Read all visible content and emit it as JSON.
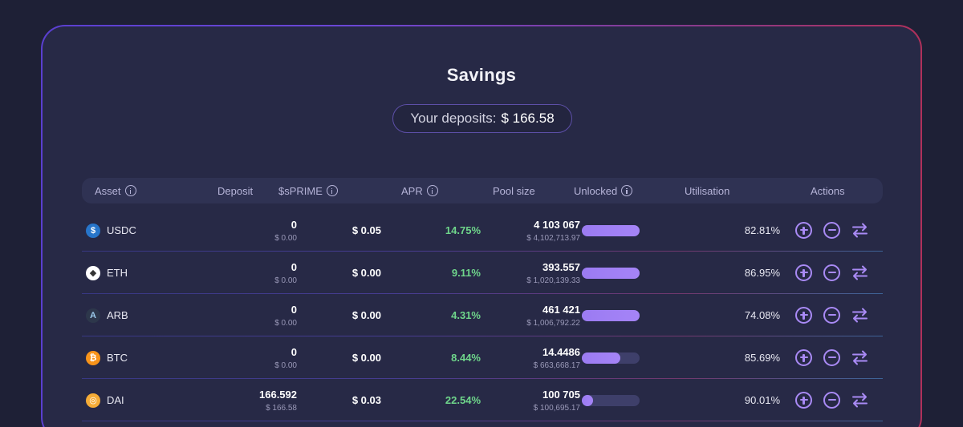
{
  "title": "Savings",
  "deposits": {
    "label": "Your deposits:",
    "value": "$ 166.58"
  },
  "columns": {
    "asset": "Asset",
    "deposit": "Deposit",
    "sprime": "$sPRIME",
    "apr": "APR",
    "pool_size": "Pool size",
    "unlocked": "Unlocked",
    "utilisation": "Utilisation",
    "actions": "Actions"
  },
  "colors": {
    "accent": "#a98af5",
    "apr_green": "#6fd68b",
    "card_bg": "#272946",
    "page_bg": "#1e2036"
  },
  "rows": [
    {
      "asset": "USDC",
      "icon": "usdc-icon",
      "icon_color": "#2775ca",
      "deposit": "0",
      "deposit_usd": "$ 0.00",
      "sprime": "$ 0.05",
      "apr": "14.75%",
      "pool_size": "4 103 067",
      "pool_size_usd": "$ 4,102,713.97",
      "unlocked_fraction": 1.0,
      "utilisation": "82.81%"
    },
    {
      "asset": "ETH",
      "icon": "eth-icon",
      "icon_color": "#ffffff",
      "deposit": "0",
      "deposit_usd": "$ 0.00",
      "sprime": "$ 0.00",
      "apr": "9.11%",
      "pool_size": "393.557",
      "pool_size_usd": "$ 1,020,139.33",
      "unlocked_fraction": 1.0,
      "utilisation": "86.95%"
    },
    {
      "asset": "ARB",
      "icon": "arb-icon",
      "icon_color": "#2d374b",
      "deposit": "0",
      "deposit_usd": "$ 0.00",
      "sprime": "$ 0.00",
      "apr": "4.31%",
      "pool_size": "461 421",
      "pool_size_usd": "$ 1,006,792.22",
      "unlocked_fraction": 1.0,
      "utilisation": "74.08%"
    },
    {
      "asset": "BTC",
      "icon": "btc-icon",
      "icon_color": "#f7931a",
      "deposit": "0",
      "deposit_usd": "$ 0.00",
      "sprime": "$ 0.00",
      "apr": "8.44%",
      "pool_size": "14.4486",
      "pool_size_usd": "$ 663,668.17",
      "unlocked_fraction": 0.66,
      "utilisation": "85.69%"
    },
    {
      "asset": "DAI",
      "icon": "dai-icon",
      "icon_color": "#f5ac37",
      "deposit": "166.592",
      "deposit_usd": "$ 166.58",
      "sprime": "$ 0.03",
      "apr": "22.54%",
      "pool_size": "100 705",
      "pool_size_usd": "$ 100,695.17",
      "unlocked_fraction": 0.2,
      "utilisation": "90.01%"
    }
  ]
}
